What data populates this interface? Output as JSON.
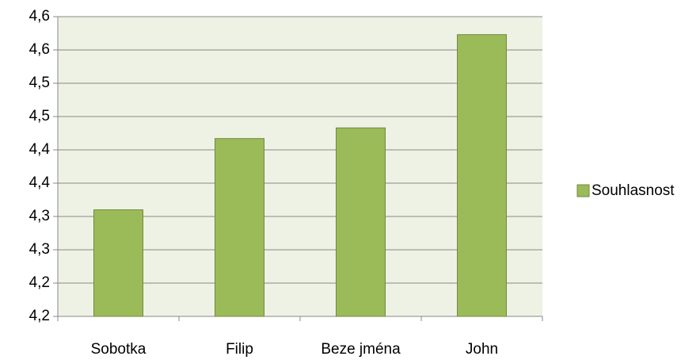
{
  "chart_data": {
    "type": "bar",
    "categories": [
      "Sobotka",
      "Filip",
      "Beze jména",
      "John"
    ],
    "series": [
      {
        "name": "Souhlasnost",
        "color": "#9bbb59",
        "values": [
          4.31,
          4.417,
          4.433,
          4.573
        ]
      }
    ],
    "ylim": [
      4.15,
      4.6
    ],
    "yticks": [
      {
        "value": 4.15,
        "label": "4,2"
      },
      {
        "value": 4.2,
        "label": "4,2"
      },
      {
        "value": 4.25,
        "label": "4,3"
      },
      {
        "value": 4.3,
        "label": "4,3"
      },
      {
        "value": 4.35,
        "label": "4,4"
      },
      {
        "value": 4.4,
        "label": "4,4"
      },
      {
        "value": 4.45,
        "label": "4,5"
      },
      {
        "value": 4.5,
        "label": "4,5"
      },
      {
        "value": 4.55,
        "label": "4,6"
      },
      {
        "value": 4.6,
        "label": "4,6"
      }
    ],
    "grid": true,
    "legend": "right"
  }
}
